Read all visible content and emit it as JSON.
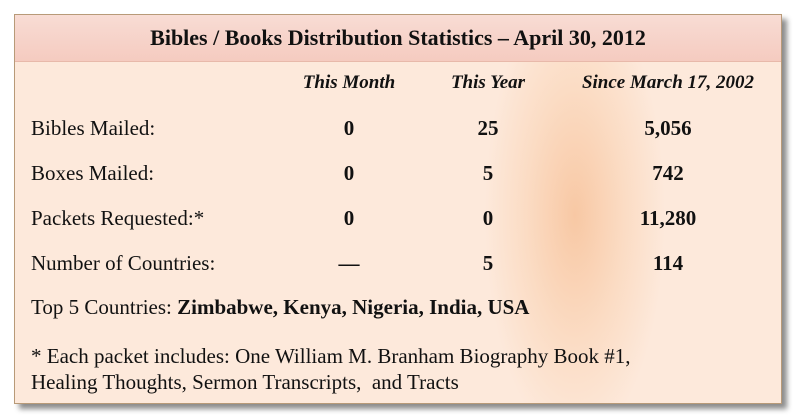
{
  "title": "Bibles / Books Distribution Statistics – April 30, 2012",
  "table": {
    "header": [
      "This Month",
      "This Year",
      "Since March 17, 2002"
    ],
    "rows": [
      [
        "Bibles Mailed:",
        "0",
        "25",
        "5,056"
      ],
      [
        "Boxes Mailed:",
        "0",
        "5",
        "742"
      ],
      [
        "Packets Requested:*",
        "0",
        "0",
        "11,280"
      ],
      [
        "Number of Countries:",
        "—",
        "5",
        "114"
      ]
    ]
  },
  "top_countries": {
    "label": "Top 5 Countries:",
    "value": "Zimbabwe, Kenya, Nigeria, India, USA"
  },
  "footnote": [
    "* Each packet includes: One William M. Branham Biography Book #1,",
    "Healing Thoughts, Sermon Transcripts,  and Tracts"
  ]
}
